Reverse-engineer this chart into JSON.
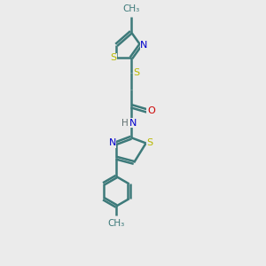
{
  "bg_color": "#ebebeb",
  "bond_color": "#3d7a7a",
  "atom_colors": {
    "S": "#b8b800",
    "N": "#0000cc",
    "O": "#cc0000",
    "H": "#607070",
    "C": "#000000"
  },
  "bond_width": 1.8,
  "dbo": 0.07,
  "xlim": [
    0,
    10
  ],
  "ylim": [
    0,
    14
  ],
  "figsize": [
    3.0,
    3.0
  ],
  "dpi": 100
}
